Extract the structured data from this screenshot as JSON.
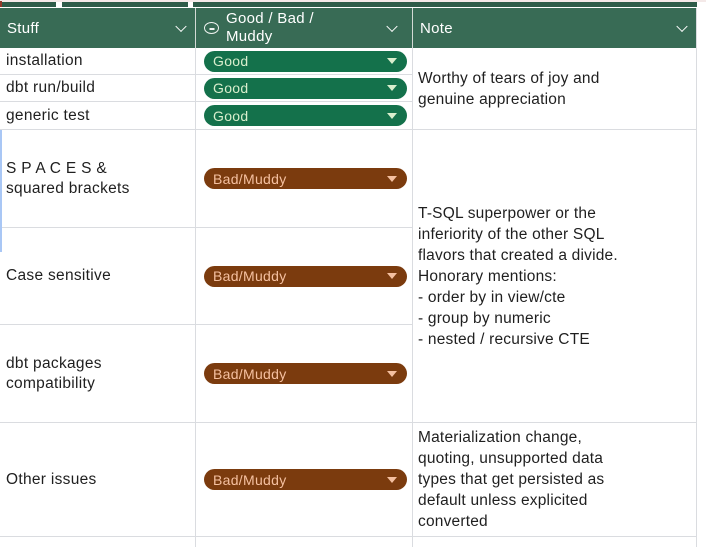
{
  "header": {
    "columns": [
      {
        "label": "Stuff"
      },
      {
        "label": "Good / Bad /\nMuddy",
        "icon": "emoji-rating-icon"
      },
      {
        "label": "Note"
      }
    ]
  },
  "rows": [
    {
      "stuff": "installation",
      "rating": "Good"
    },
    {
      "stuff": "dbt run/build",
      "rating": "Good"
    },
    {
      "stuff": "generic test",
      "rating": "Good"
    },
    {
      "stuff": "S P A C E S &\nsquared brackets",
      "rating": "Bad/Muddy"
    },
    {
      "stuff": "Case sensitive",
      "rating": "Bad/Muddy"
    },
    {
      "stuff": "dbt packages\ncompatibility",
      "rating": "Bad/Muddy"
    },
    {
      "stuff": "Other issues",
      "rating": "Bad/Muddy"
    }
  ],
  "notes": [
    {
      "text": "Worthy of tears of joy and\ngenuine appreciation"
    },
    {
      "text": "T-SQL superpower or the\ninferiority of the other SQL\nflavors that created a divide.\nHonorary mentions:\n- order by in view/cte\n- group by numeric\n- nested / recursive CTE"
    },
    {
      "text": "Materialization change,\nquoting, unsupported data\ntypes that get persisted as\ndefault unless explicited\nconverted"
    }
  ],
  "chip_colors": {
    "Good": {
      "bg": "#14714B",
      "fg": "#D9EECD"
    },
    "Bad/Muddy": {
      "bg": "#7B3B0E",
      "fg": "#F5C0A0"
    }
  },
  "colors": {
    "header_bg": "#386B55",
    "gridline": "#DADCE0",
    "body_text": "#1F1F1F",
    "header_text": "#FFFFFF"
  }
}
